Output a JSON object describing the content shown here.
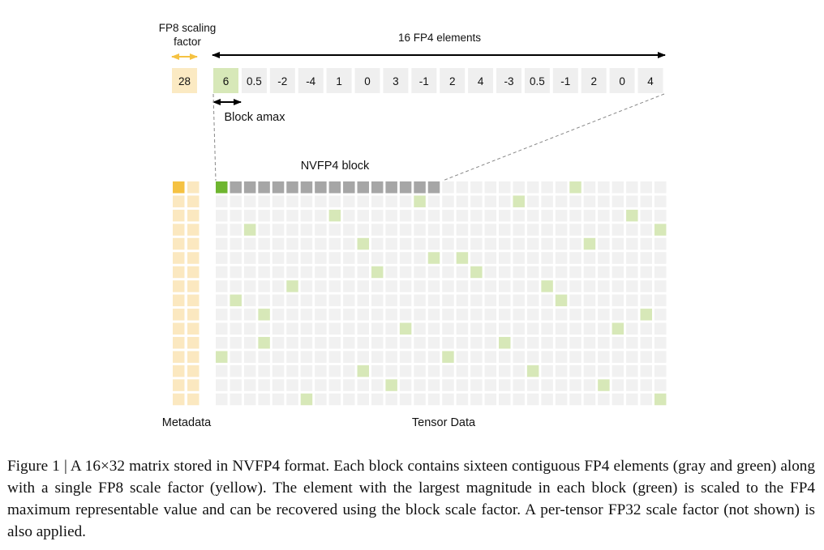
{
  "header": {
    "scale_label_line1": "FP8 scaling",
    "scale_label_line2": "factor",
    "elements_label": "16 FP4 elements"
  },
  "scale_value": "28",
  "elements": [
    "6",
    "0.5",
    "-2",
    "-4",
    "1",
    "0",
    "3",
    "-1",
    "2",
    "4",
    "-3",
    "0.5",
    "-1",
    "2",
    "0",
    "4"
  ],
  "amax_label": "Block amax",
  "block_label": "NVFP4 block",
  "metadata_label": "Metadata",
  "tensor_label": "Tensor Data",
  "caption": "Figure 1 | A 16×32 matrix stored in NVFP4 format. Each block contains sixteen contiguous FP4 elements (gray and green) along with a single FP8 scale factor (yellow). The element with the largest magnitude in each block (green) is scaled to the FP4 maximum representable value and can be recovered using the block scale factor. A per-tensor FP32 scale factor (not shown) is also applied.",
  "matrix": {
    "rows": 16,
    "cols": 32,
    "block_size": 16,
    "highlighted_block": {
      "row": 0,
      "block": 0
    },
    "amax_columns": [
      [
        0,
        25
      ],
      [
        14,
        21
      ],
      [
        8,
        29
      ],
      [
        2,
        31
      ],
      [
        10,
        26
      ],
      [
        15,
        17
      ],
      [
        11,
        18
      ],
      [
        5,
        23
      ],
      [
        1,
        24
      ],
      [
        3,
        30
      ],
      [
        13,
        28
      ],
      [
        3,
        20
      ],
      [
        0,
        16
      ],
      [
        10,
        22
      ],
      [
        12,
        27
      ],
      [
        6,
        31
      ]
    ]
  },
  "colors": {
    "scale_fill": "#fbeac3",
    "scale_header": "#f5c242",
    "metadata_fill": "#fbe8c0",
    "amax_fill": "#d7e8b8",
    "amax_header": "#6eb52f",
    "block_gray": "#a6a6a6",
    "cell_gray": "#f1f1f1",
    "element_box": "#efefef"
  }
}
